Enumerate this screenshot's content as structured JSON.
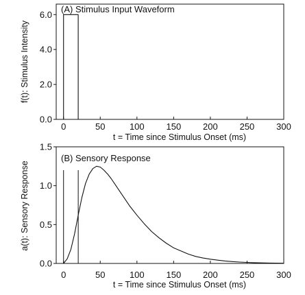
{
  "chart_data": [
    {
      "type": "line",
      "panel_label": "(A) Stimulus Input Waveform",
      "xlabel": "t = Time since Stimulus Onset (ms)",
      "ylabel": "f(t): Stimulus Intensity",
      "xlim": [
        -10,
        300
      ],
      "ylim": [
        0,
        6.6
      ],
      "xticks": [
        0,
        50,
        100,
        150,
        200,
        250,
        300
      ],
      "yticks": [
        0.0,
        2.0,
        4.0,
        6.0
      ],
      "xtick_labels": [
        "0",
        "50",
        "100",
        "150",
        "200",
        "250",
        "300"
      ],
      "ytick_labels": [
        "0.0",
        "2.0",
        "4.0",
        "6.0"
      ],
      "grid": false,
      "series": [
        {
          "x": [
            -10,
            0,
            0,
            20,
            20,
            300
          ],
          "y": [
            0,
            0,
            6,
            6,
            0,
            0
          ]
        }
      ]
    },
    {
      "type": "line",
      "panel_label": "(B) Sensory Response",
      "xlabel": "t = Time since Stimulus Onset (ms)",
      "ylabel": "a(t): Sensory Response",
      "xlim": [
        -10,
        300
      ],
      "ylim": [
        0,
        1.5
      ],
      "xticks": [
        0,
        50,
        100,
        150,
        200,
        250,
        300
      ],
      "yticks": [
        0.0,
        0.5,
        1.0,
        1.5
      ],
      "xtick_labels": [
        "0",
        "50",
        "100",
        "150",
        "200",
        "250",
        "300"
      ],
      "ytick_labels": [
        "0.0",
        "0.5",
        "1.0",
        "1.5"
      ],
      "grid": false,
      "series": [
        {
          "x": [
            0,
            5,
            10,
            15,
            20,
            25,
            30,
            35,
            40,
            45,
            50,
            55,
            60,
            65,
            70,
            80,
            90,
            100,
            110,
            120,
            130,
            140,
            150,
            160,
            170,
            180,
            190,
            200,
            210,
            220,
            230,
            240,
            250,
            260,
            270,
            280,
            290,
            300
          ],
          "y": [
            0,
            0.06,
            0.18,
            0.38,
            0.62,
            0.85,
            1.03,
            1.15,
            1.22,
            1.25,
            1.24,
            1.2,
            1.15,
            1.09,
            1.02,
            0.88,
            0.74,
            0.62,
            0.51,
            0.41,
            0.33,
            0.26,
            0.2,
            0.16,
            0.12,
            0.09,
            0.07,
            0.055,
            0.042,
            0.032,
            0.024,
            0.018,
            0.013,
            0.01,
            0.007,
            0.005,
            0.004,
            0.003
          ]
        }
      ],
      "vlines": [
        0,
        20
      ]
    }
  ]
}
